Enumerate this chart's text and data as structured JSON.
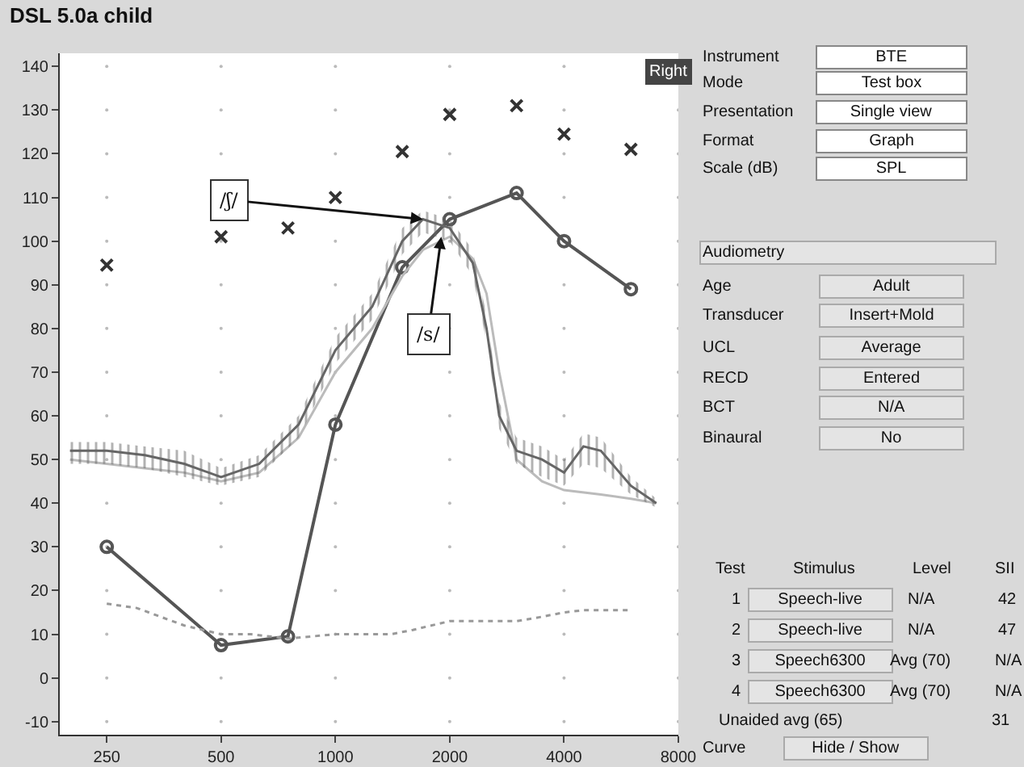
{
  "chart_data": {
    "type": "line",
    "title": "DSL 5.0a child",
    "xlim": [
      188,
      8000
    ],
    "ylim": [
      -13,
      143
    ],
    "log": "x",
    "xticks": [
      250,
      500,
      1000,
      2000,
      4000,
      8000
    ],
    "yticks": [
      140,
      130,
      120,
      110,
      100,
      90,
      80,
      70,
      60,
      50,
      40,
      30,
      20,
      10,
      0,
      -10
    ],
    "grid": false,
    "series": [
      {
        "type": "scatter",
        "marker": "cross",
        "color": "#333333",
        "x": [
          250,
          500,
          750,
          1000,
          1500,
          2000,
          3000,
          4000,
          6000
        ],
        "values": [
          94.5,
          101,
          103,
          110,
          120.5,
          129,
          131,
          124.5,
          121
        ]
      },
      {
        "marker": "circle",
        "color": "#555555",
        "line_style": "solid",
        "x": [
          250,
          500,
          750,
          1000,
          1500,
          2000,
          3000,
          4000,
          6000
        ],
        "values": [
          30,
          7.5,
          9.5,
          58,
          94,
          105,
          111,
          100,
          89
        ]
      },
      {
        "marker": "none",
        "color": "#999999",
        "line_style": "dotted",
        "x": [
          250,
          300,
          400,
          500,
          600,
          750,
          1000,
          1400,
          1600,
          2000,
          3000,
          3500,
          4000,
          4500,
          6000
        ],
        "values": [
          17,
          16,
          12,
          10,
          10,
          9,
          10,
          10,
          11,
          13,
          13,
          14,
          15,
          15.5,
          15.5
        ]
      },
      {
        "marker": "none",
        "color": "#bbbbbb",
        "line_style": "solid",
        "x": [
          200,
          250,
          315,
          400,
          500,
          630,
          800,
          1000,
          1250,
          1500,
          1700,
          2000,
          2300,
          2500,
          2700,
          3000,
          3500,
          4000,
          5000,
          6000,
          7000
        ],
        "values": [
          50,
          49,
          48,
          47,
          45,
          47,
          55,
          70,
          80,
          92,
          98,
          101,
          96,
          88,
          70,
          50,
          45,
          43,
          42,
          41,
          40
        ]
      },
      {
        "marker": "none",
        "color": "#666666",
        "line_style": "solid",
        "x": [
          200,
          250,
          315,
          400,
          500,
          630,
          800,
          1000,
          1250,
          1500,
          1700,
          2000,
          2300,
          2500,
          2700,
          3000,
          3500,
          4000,
          4500,
          5000,
          6000,
          7000
        ],
        "values": [
          52,
          52,
          51,
          49,
          46,
          49,
          58,
          75,
          85,
          100,
          105,
          103,
          95,
          80,
          60,
          52,
          50,
          47,
          53,
          52,
          44,
          40
        ],
        "lower": [
          49,
          49,
          48,
          46,
          44,
          46,
          55,
          72,
          82,
          97,
          102,
          100,
          92,
          77,
          57,
          49,
          46,
          44,
          49,
          48,
          42,
          39
        ],
        "upper": [
          54,
          54,
          53,
          52,
          48,
          51,
          60,
          78,
          88,
          103,
          107,
          105,
          98,
          83,
          63,
          55,
          53,
          50,
          56,
          55,
          46,
          41
        ]
      }
    ],
    "annotations": [
      {
        "text": "/ʃ/",
        "x": 1700,
        "y": 105
      },
      {
        "text": "/s/",
        "x": 1900,
        "y": 101
      },
      "Right",
      "Instrument",
      "BTE",
      "Mode",
      "Test box",
      "Presentation",
      "Single view",
      "Format",
      "Graph",
      "Scale (dB)",
      "SPL",
      "Audiometry",
      "Age",
      "Adult",
      "Transducer",
      "Insert+Mold",
      "UCL",
      "Average",
      "RECD",
      "Entered",
      "BCT",
      "N/A",
      "Binaural",
      "No",
      "Test",
      "Stimulus",
      "Level",
      "SII",
      "1",
      "Speech-live",
      "N/A",
      "42",
      "2",
      "Speech-live",
      "N/A",
      "47",
      "3",
      "Speech6300",
      "Avg (70)",
      "N/A",
      "4",
      "Speech6300",
      "Avg (70)",
      "N/A",
      "Unaided avg (65)",
      "31",
      "Curve",
      "Hide / Show"
    ]
  }
}
